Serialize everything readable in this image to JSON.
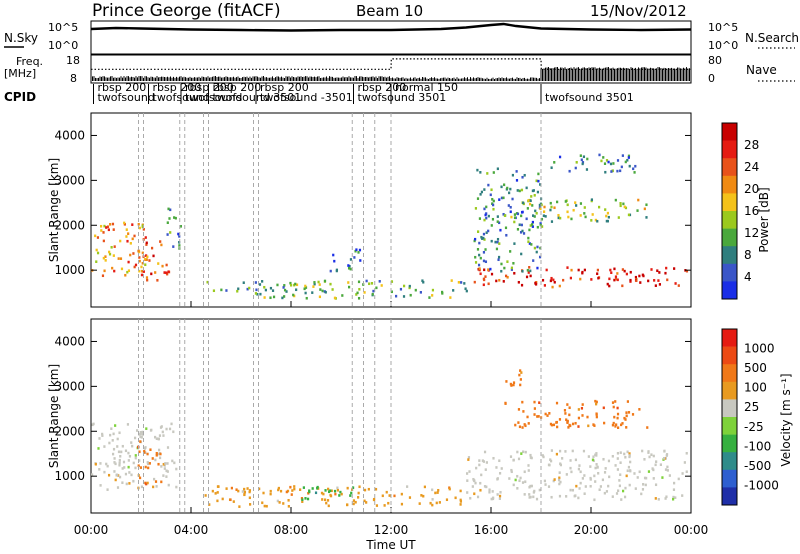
{
  "header": {
    "station": "Prince George (fitACF)",
    "beam": "Beam 10",
    "date": "15/Nov/2012"
  },
  "top_panels": {
    "nsky_label": "N.Sky",
    "nsky_ticks": [
      "10^5",
      "10^0"
    ],
    "nsearch_label": "N.Search",
    "nsearch_ticks": [
      "10^5",
      "10^0"
    ],
    "freq_label": [
      "Freq.",
      "[MHz]"
    ],
    "freq_ticks": [
      "18",
      "8"
    ],
    "nave_label": "Nave",
    "nave_ticks": [
      "80",
      "0"
    ],
    "cpid_label": "CPID",
    "cpid_entries": [
      {
        "row": 0,
        "text": "rbsp 200",
        "t": 0.1
      },
      {
        "row": 1,
        "text": "twofsound",
        "t": 0.1
      },
      {
        "row": 0,
        "text": "rbsp 200",
        "t": 2.3
      },
      {
        "row": 1,
        "text": "twofsound",
        "t": 2.3
      },
      {
        "row": 0,
        "text": "rbsp 200",
        "t": 3.6
      },
      {
        "row": 1,
        "text": "twofsound",
        "t": 3.6
      },
      {
        "row": 0,
        "text": "rbsp 200",
        "t": 4.7
      },
      {
        "row": 1,
        "text": "twofsound 3501",
        "t": 4.7
      },
      {
        "row": 0,
        "text": "rbsp 200",
        "t": 6.6
      },
      {
        "row": 1,
        "text": "twofsound -3501",
        "t": 6.6
      },
      {
        "row": 0,
        "text": "rbsp 200",
        "t": 10.5
      },
      {
        "row": 1,
        "text": "twofsound 3501",
        "t": 10.5
      },
      {
        "row": 0,
        "text": "normal 150",
        "t": 12.0
      },
      {
        "row": 1,
        "text": "twofsound 3501",
        "t": 18.0
      }
    ]
  },
  "chart_data": [
    {
      "type": "heatmap",
      "panel": "power",
      "ylabel": "Slant Range [km]",
      "yticks": [
        "1000",
        "2000",
        "3000",
        "4000"
      ],
      "ylim": [
        180,
        4500
      ],
      "xlim": [
        0,
        24
      ],
      "colorbar_label": "Power [dB]",
      "colorbar_ticks": [
        "4",
        "8",
        "12",
        "16",
        "20",
        "24",
        "28"
      ],
      "colorbar_range": [
        0,
        30
      ],
      "colorbar_colors": [
        "#1a2ee6",
        "#3a56c8",
        "#2f7e7e",
        "#4aa83c",
        "#9bc91e",
        "#f4c21a",
        "#f08a12",
        "#e8521a",
        "#e51b12",
        "#c80000"
      ],
      "echo_regions": [
        {
          "t0": 0.0,
          "t1": 2.2,
          "r0": 900,
          "r1": 2100,
          "level": 18
        },
        {
          "t0": 1.7,
          "t1": 3.1,
          "r0": 800,
          "r1": 1700,
          "level": 22
        },
        {
          "t0": 3.0,
          "t1": 3.6,
          "r0": 1500,
          "r1": 2500,
          "level": 6
        },
        {
          "t0": 4.5,
          "t1": 15.0,
          "r0": 400,
          "r1": 800,
          "level": 10
        },
        {
          "t0": 9.5,
          "t1": 10.8,
          "r0": 1000,
          "r1": 1500,
          "level": 5
        },
        {
          "t0": 15.3,
          "t1": 23.8,
          "r0": 650,
          "r1": 1100,
          "level": 24
        },
        {
          "t0": 15.3,
          "t1": 18.0,
          "r0": 1000,
          "r1": 3300,
          "level": 6
        },
        {
          "t0": 16.7,
          "t1": 22.2,
          "r0": 2100,
          "r1": 2600,
          "level": 12
        },
        {
          "t0": 18.2,
          "t1": 22.0,
          "r0": 3200,
          "r1": 3600,
          "level": 6
        }
      ]
    },
    {
      "type": "heatmap",
      "panel": "velocity",
      "ylabel": "Slant Range [km]",
      "yticks": [
        "1000",
        "2000",
        "3000",
        "4000"
      ],
      "ylim": [
        180,
        4500
      ],
      "xlim": [
        0,
        24
      ],
      "xlabel": "Time UT",
      "xticks": [
        "00:00",
        "04:00",
        "08:00",
        "12:00",
        "16:00",
        "20:00",
        "00:00"
      ],
      "colorbar_label": "Velocity [m s⁻¹]",
      "colorbar_ticks": [
        "1000",
        "500",
        "100",
        "25",
        "-25",
        "-100",
        "-500",
        "-1000"
      ],
      "colorbar_colors": [
        "#1f2fa8",
        "#2e5fd0",
        "#2f8c8a",
        "#36b040",
        "#7ed23a",
        "#c8c8c0",
        "#e89a20",
        "#f07818",
        "#ec4a14",
        "#e51b12"
      ],
      "echo_regions": [
        {
          "t0": 0.0,
          "t1": 3.4,
          "r0": 700,
          "r1": 2200,
          "v": 0
        },
        {
          "t0": 1.8,
          "t1": 2.8,
          "r0": 800,
          "r1": 1800,
          "v": -200
        },
        {
          "t0": 4.5,
          "t1": 15.0,
          "r0": 350,
          "r1": 800,
          "v": -50
        },
        {
          "t0": 8.0,
          "t1": 10.5,
          "r0": 500,
          "r1": 800,
          "v": 100
        },
        {
          "t0": 15.0,
          "t1": 23.8,
          "r0": 500,
          "r1": 1600,
          "v": 0
        },
        {
          "t0": 16.5,
          "t1": 22.3,
          "r0": 2100,
          "r1": 2700,
          "v": -300
        },
        {
          "t0": 16.5,
          "t1": 17.2,
          "r0": 2800,
          "r1": 3400,
          "v": -300
        }
      ]
    },
    {
      "type": "line",
      "panel": "nsky",
      "x": [
        0,
        1,
        2,
        3,
        4,
        6,
        8,
        10,
        12,
        14,
        15,
        16,
        16.5,
        17,
        18,
        20,
        22,
        24
      ],
      "y": [
        4.6,
        4.8,
        4.7,
        4.6,
        4.5,
        4.4,
        4.3,
        4.4,
        4.4,
        4.6,
        4.9,
        5.4,
        5.6,
        5.2,
        4.7,
        4.5,
        4.4,
        4.5
      ]
    },
    {
      "type": "line",
      "panel": "freq",
      "x": [
        0,
        12.0,
        12.01,
        18.0,
        18.01,
        24
      ],
      "y": [
        12.5,
        12.5,
        16.5,
        16.5,
        12.5,
        12.5
      ]
    }
  ]
}
